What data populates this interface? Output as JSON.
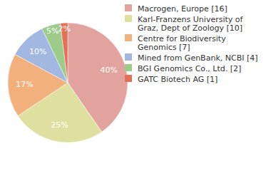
{
  "chart_data": {
    "type": "pie",
    "categories": [
      "Macrogen, Europe [16]",
      "Karl-Franzens University of Graz, Dept of Zoology [10]",
      "Centre for Biodiversity Genomics [7]",
      "Mined from GenBank, NCBI [4]",
      "BGI Genomics Co., Ltd. [2]",
      "GATC Biotech AG [1]"
    ],
    "values": [
      40,
      25,
      17,
      10,
      5,
      2
    ],
    "value_labels": [
      "40%",
      "25%",
      "17%",
      "10%",
      "5%",
      "2%"
    ],
    "colors": [
      "#e2a39f",
      "#dfe09f",
      "#f2b07c",
      "#a2b8e0",
      "#9dcb8a",
      "#e27158"
    ],
    "data_labels": true,
    "legend": "right"
  }
}
